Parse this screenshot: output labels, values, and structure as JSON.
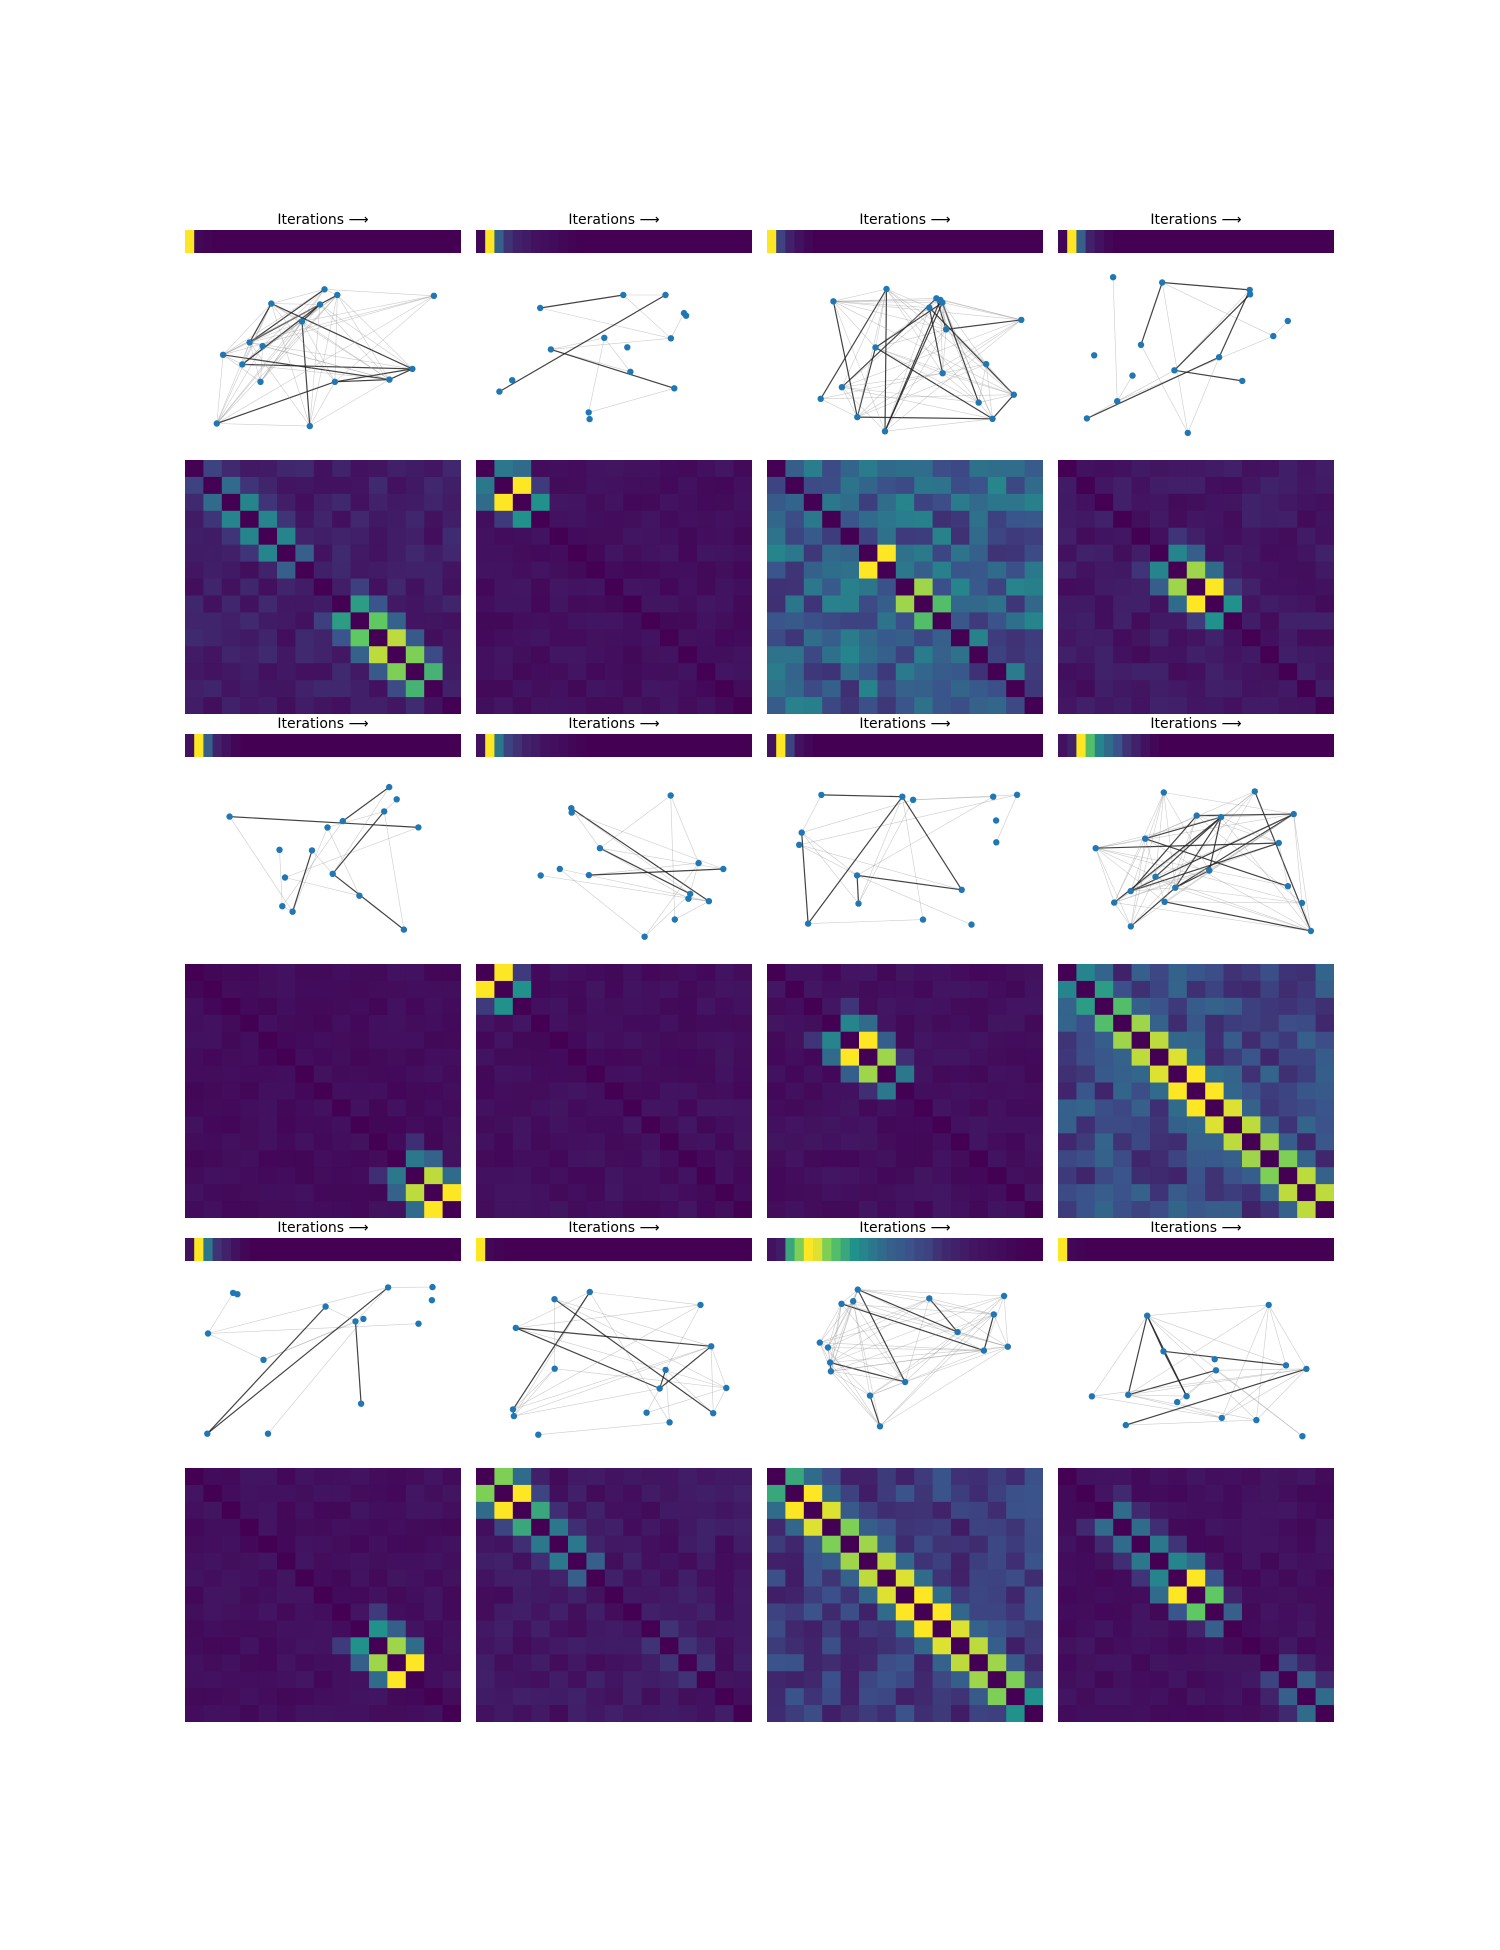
{
  "panel_title": "Iterations ⟶",
  "colormap_anchors": [
    "#440154",
    "#3b528b",
    "#21918c",
    "#5ec962",
    "#fde725"
  ],
  "node_color": "#1f77b4",
  "chart_data": [
    {
      "type": "heatmap",
      "panel": 1,
      "title": "Iterations ⟶",
      "iteration_strip": [
        1,
        0.02,
        0.01,
        0,
        0,
        0,
        0,
        0,
        0,
        0,
        0,
        0,
        0,
        0,
        0,
        0,
        0,
        0,
        0,
        0,
        0,
        0,
        0,
        0,
        0,
        0,
        0,
        0,
        0,
        0
      ],
      "graph": {
        "nodes": 16,
        "density": "dense"
      },
      "matrix": {
        "size": 15,
        "diagonal": [
          [
            0,
            1,
            0.2
          ],
          [
            1,
            2,
            0.35
          ],
          [
            2,
            3,
            0.45
          ],
          [
            3,
            4,
            0.45
          ],
          [
            4,
            5,
            0.45
          ],
          [
            5,
            6,
            0.3
          ],
          [
            8,
            9,
            0.55
          ],
          [
            9,
            10,
            0.75
          ],
          [
            10,
            11,
            0.9
          ],
          [
            11,
            12,
            0.8
          ],
          [
            12,
            13,
            0.65
          ]
        ],
        "background": 0.1
      }
    },
    {
      "type": "heatmap",
      "panel": 2,
      "title": "Iterations ⟶",
      "iteration_strip": [
        0.02,
        1,
        0.3,
        0.15,
        0.1,
        0.08,
        0.05,
        0.04,
        0.03,
        0.02,
        0.01,
        0,
        0,
        0,
        0,
        0,
        0,
        0,
        0,
        0,
        0,
        0,
        0,
        0,
        0,
        0,
        0,
        0,
        0,
        0
      ],
      "graph": {
        "nodes": 15,
        "density": "sparse"
      },
      "matrix": {
        "size": 15,
        "diagonal": [
          [
            0,
            1,
            0.4
          ],
          [
            1,
            2,
            1
          ],
          [
            2,
            3,
            0.5
          ]
        ],
        "background": 0.05
      }
    },
    {
      "type": "heatmap",
      "panel": 3,
      "title": "Iterations ⟶",
      "iteration_strip": [
        1,
        0.2,
        0.1,
        0.05,
        0.02,
        0,
        0,
        0,
        0,
        0,
        0,
        0,
        0,
        0,
        0,
        0,
        0,
        0,
        0,
        0,
        0,
        0,
        0,
        0,
        0,
        0,
        0,
        0,
        0,
        0
      ],
      "graph": {
        "nodes": 18,
        "density": "dense"
      },
      "matrix": {
        "size": 15,
        "diagonal": [
          [
            2,
            3,
            0.4
          ],
          [
            5,
            6,
            1
          ],
          [
            7,
            8,
            0.85
          ],
          [
            8,
            9,
            0.7
          ]
        ],
        "background": 0.35
      }
    },
    {
      "type": "heatmap",
      "panel": 4,
      "title": "Iterations ⟶",
      "iteration_strip": [
        0.02,
        1,
        0.3,
        0.1,
        0.05,
        0.02,
        0,
        0,
        0,
        0,
        0,
        0,
        0,
        0,
        0,
        0,
        0,
        0,
        0,
        0,
        0,
        0,
        0,
        0,
        0,
        0,
        0,
        0,
        0,
        0
      ],
      "graph": {
        "nodes": 15,
        "density": "sparse"
      },
      "matrix": {
        "size": 15,
        "diagonal": [
          [
            5,
            6,
            0.45
          ],
          [
            6,
            7,
            0.85
          ],
          [
            7,
            8,
            1
          ],
          [
            8,
            9,
            0.5
          ]
        ],
        "background": 0.08
      }
    },
    {
      "type": "heatmap",
      "panel": 5,
      "title": "Iterations ⟶",
      "iteration_strip": [
        0.05,
        1,
        0.3,
        0.1,
        0.05,
        0.02,
        0,
        0,
        0,
        0,
        0,
        0,
        0,
        0,
        0,
        0,
        0,
        0,
        0,
        0,
        0,
        0,
        0,
        0,
        0,
        0,
        0,
        0,
        0,
        0
      ],
      "graph": {
        "nodes": 15,
        "density": "sparse"
      },
      "matrix": {
        "size": 15,
        "diagonal": [
          [
            11,
            12,
            0.4
          ],
          [
            12,
            13,
            0.9
          ],
          [
            13,
            14,
            1
          ]
        ],
        "background": 0.04
      }
    },
    {
      "type": "heatmap",
      "panel": 6,
      "title": "Iterations ⟶",
      "iteration_strip": [
        0.05,
        1,
        0.4,
        0.2,
        0.15,
        0.1,
        0.08,
        0.05,
        0.04,
        0.03,
        0.02,
        0.01,
        0,
        0,
        0,
        0,
        0,
        0,
        0,
        0,
        0,
        0,
        0,
        0,
        0,
        0,
        0,
        0,
        0,
        0
      ],
      "graph": {
        "nodes": 14,
        "density": "sparse"
      },
      "matrix": {
        "size": 15,
        "diagonal": [
          [
            0,
            1,
            1
          ],
          [
            1,
            2,
            0.5
          ]
        ],
        "background": 0.05
      }
    },
    {
      "type": "heatmap",
      "panel": 7,
      "title": "Iterations ⟶",
      "iteration_strip": [
        0.05,
        1,
        0.2,
        0.05,
        0.02,
        0,
        0,
        0,
        0,
        0,
        0,
        0,
        0,
        0,
        0,
        0,
        0,
        0,
        0,
        0,
        0,
        0,
        0,
        0,
        0,
        0,
        0,
        0,
        0,
        0
      ],
      "graph": {
        "nodes": 15,
        "density": "sparse"
      },
      "matrix": {
        "size": 15,
        "diagonal": [
          [
            3,
            4,
            0.45
          ],
          [
            4,
            5,
            1
          ],
          [
            5,
            6,
            0.85
          ],
          [
            6,
            7,
            0.4
          ]
        ],
        "background": 0.05
      }
    },
    {
      "type": "heatmap",
      "panel": 8,
      "title": "Iterations ⟶",
      "iteration_strip": [
        0.05,
        0.1,
        1,
        0.7,
        0.45,
        0.35,
        0.25,
        0.15,
        0.1,
        0.05,
        0.02,
        0,
        0,
        0,
        0,
        0,
        0,
        0,
        0,
        0,
        0,
        0,
        0,
        0,
        0,
        0,
        0,
        0,
        0,
        0
      ],
      "graph": {
        "nodes": 18,
        "density": "dense"
      },
      "matrix": {
        "size": 15,
        "diagonal": [
          [
            0,
            1,
            0.45
          ],
          [
            1,
            2,
            0.55
          ],
          [
            2,
            3,
            0.7
          ],
          [
            3,
            4,
            0.85
          ],
          [
            4,
            5,
            0.9
          ],
          [
            5,
            6,
            0.95
          ],
          [
            6,
            7,
            1
          ],
          [
            7,
            8,
            1
          ],
          [
            8,
            9,
            0.95
          ],
          [
            9,
            10,
            0.9
          ],
          [
            10,
            11,
            0.85
          ],
          [
            11,
            12,
            0.8
          ],
          [
            12,
            13,
            0.9
          ],
          [
            13,
            14,
            0.9
          ]
        ],
        "background": 0.25
      }
    },
    {
      "type": "heatmap",
      "panel": 9,
      "title": "Iterations ⟶",
      "iteration_strip": [
        0.05,
        1,
        0.4,
        0.15,
        0.1,
        0.05,
        0.02,
        0,
        0,
        0,
        0,
        0,
        0,
        0,
        0,
        0,
        0,
        0,
        0,
        0,
        0,
        0,
        0,
        0,
        0,
        0,
        0,
        0,
        0,
        0
      ],
      "graph": {
        "nodes": 14,
        "density": "sparse"
      },
      "matrix": {
        "size": 15,
        "diagonal": [
          [
            9,
            10,
            0.5
          ],
          [
            10,
            11,
            0.85
          ],
          [
            11,
            12,
            1
          ]
        ],
        "background": 0.05
      }
    },
    {
      "type": "heatmap",
      "panel": 10,
      "title": "Iterations ⟶",
      "iteration_strip": [
        1,
        0.02,
        0.01,
        0,
        0,
        0,
        0,
        0,
        0,
        0,
        0,
        0,
        0,
        0,
        0,
        0,
        0,
        0,
        0,
        0,
        0,
        0,
        0,
        0,
        0,
        0,
        0,
        0,
        0,
        0
      ],
      "graph": {
        "nodes": 15,
        "density": "medium"
      },
      "matrix": {
        "size": 15,
        "diagonal": [
          [
            0,
            1,
            0.8
          ],
          [
            1,
            2,
            1
          ],
          [
            2,
            3,
            0.6
          ],
          [
            3,
            4,
            0.4
          ],
          [
            4,
            5,
            0.4
          ],
          [
            5,
            6,
            0.3
          ],
          [
            9,
            10,
            0.15
          ],
          [
            10,
            11,
            0.15
          ],
          [
            11,
            12,
            0.15
          ]
        ],
        "background": 0.08
      }
    },
    {
      "type": "heatmap",
      "panel": 11,
      "title": "Iterations ⟶",
      "iteration_strip": [
        0.05,
        0.08,
        0.6,
        0.8,
        1,
        0.95,
        0.8,
        0.7,
        0.6,
        0.5,
        0.45,
        0.4,
        0.35,
        0.3,
        0.28,
        0.25,
        0.22,
        0.2,
        0.15,
        0.12,
        0.1,
        0.08,
        0.06,
        0.05,
        0.04,
        0.03,
        0.02,
        0.01,
        0,
        0
      ],
      "graph": {
        "nodes": 16,
        "density": "dense"
      },
      "matrix": {
        "size": 15,
        "diagonal": [
          [
            0,
            1,
            0.6
          ],
          [
            1,
            2,
            1
          ],
          [
            2,
            3,
            0.95
          ],
          [
            3,
            4,
            0.8
          ],
          [
            4,
            5,
            0.85
          ],
          [
            5,
            6,
            0.9
          ],
          [
            6,
            7,
            0.95
          ],
          [
            7,
            8,
            1
          ],
          [
            8,
            9,
            1
          ],
          [
            9,
            10,
            0.95
          ],
          [
            10,
            11,
            0.9
          ],
          [
            11,
            12,
            0.85
          ],
          [
            12,
            13,
            0.8
          ],
          [
            13,
            14,
            0.5
          ]
        ],
        "background": 0.2
      }
    },
    {
      "type": "heatmap",
      "panel": 12,
      "title": "Iterations ⟶",
      "iteration_strip": [
        1,
        0.02,
        0.01,
        0,
        0,
        0,
        0,
        0,
        0,
        0,
        0,
        0,
        0,
        0,
        0,
        0,
        0,
        0,
        0,
        0,
        0,
        0,
        0,
        0,
        0,
        0,
        0,
        0,
        0,
        0
      ],
      "graph": {
        "nodes": 15,
        "density": "medium"
      },
      "matrix": {
        "size": 15,
        "diagonal": [
          [
            2,
            3,
            0.35
          ],
          [
            3,
            4,
            0.35
          ],
          [
            4,
            5,
            0.4
          ],
          [
            5,
            6,
            0.45
          ],
          [
            6,
            7,
            1
          ],
          [
            7,
            8,
            0.75
          ],
          [
            8,
            9,
            0.3
          ],
          [
            11,
            12,
            0.2
          ],
          [
            12,
            13,
            0.3
          ],
          [
            13,
            14,
            0.35
          ]
        ],
        "background": 0.05
      }
    }
  ]
}
